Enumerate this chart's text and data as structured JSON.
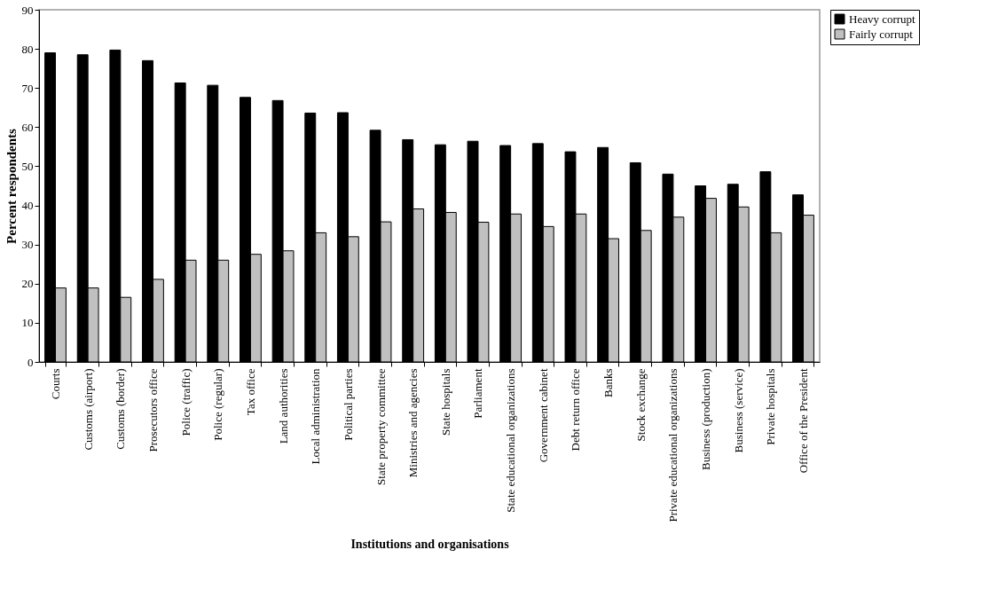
{
  "chart_data": {
    "type": "bar",
    "xlabel": "Institutions and organisations",
    "ylabel": "Percent respondents",
    "categories": [
      "Courts",
      "Customs (airport)",
      "Customs (border)",
      "Prosecutors office",
      "Police (traffic)",
      "Police (regular)",
      "Tax office",
      "Land authorities",
      "Local administration",
      "Political parties",
      "State property committee",
      "Ministries and agencies",
      "State hospitals",
      "Parliament",
      "State educational organizations",
      "Government cabinet",
      "Debt return office",
      "Banks",
      "Stock exchange",
      "Private educational organizations",
      "Business (production)",
      "Business (service)",
      "Private hospitals",
      "Office of the President"
    ],
    "series": [
      {
        "name": "Heavy corrupt",
        "color": "#000000",
        "values": [
          79,
          78.5,
          79.7,
          77,
          71.3,
          70.7,
          67.6,
          66.8,
          63.6,
          63.7,
          59.2,
          56.8,
          55.5,
          56.4,
          55.3,
          55.8,
          53.7,
          54.8,
          50.9,
          48,
          45,
          45.4,
          48.6,
          42.7
        ]
      },
      {
        "name": "Fairly corrupt",
        "color": "#c0c0c0",
        "values": [
          18.9,
          18.9,
          16.5,
          21.1,
          26,
          26,
          27.5,
          28.4,
          33,
          32,
          35.8,
          39.1,
          38.2,
          35.7,
          37.8,
          34.6,
          37.8,
          31.5,
          33.6,
          37,
          41.8,
          39.6,
          33,
          37.5
        ]
      }
    ],
    "ylim": [
      0,
      90
    ],
    "yticks": [
      0,
      10,
      20,
      30,
      40,
      50,
      60,
      70,
      80,
      90
    ],
    "grid": false,
    "legend": "right"
  }
}
